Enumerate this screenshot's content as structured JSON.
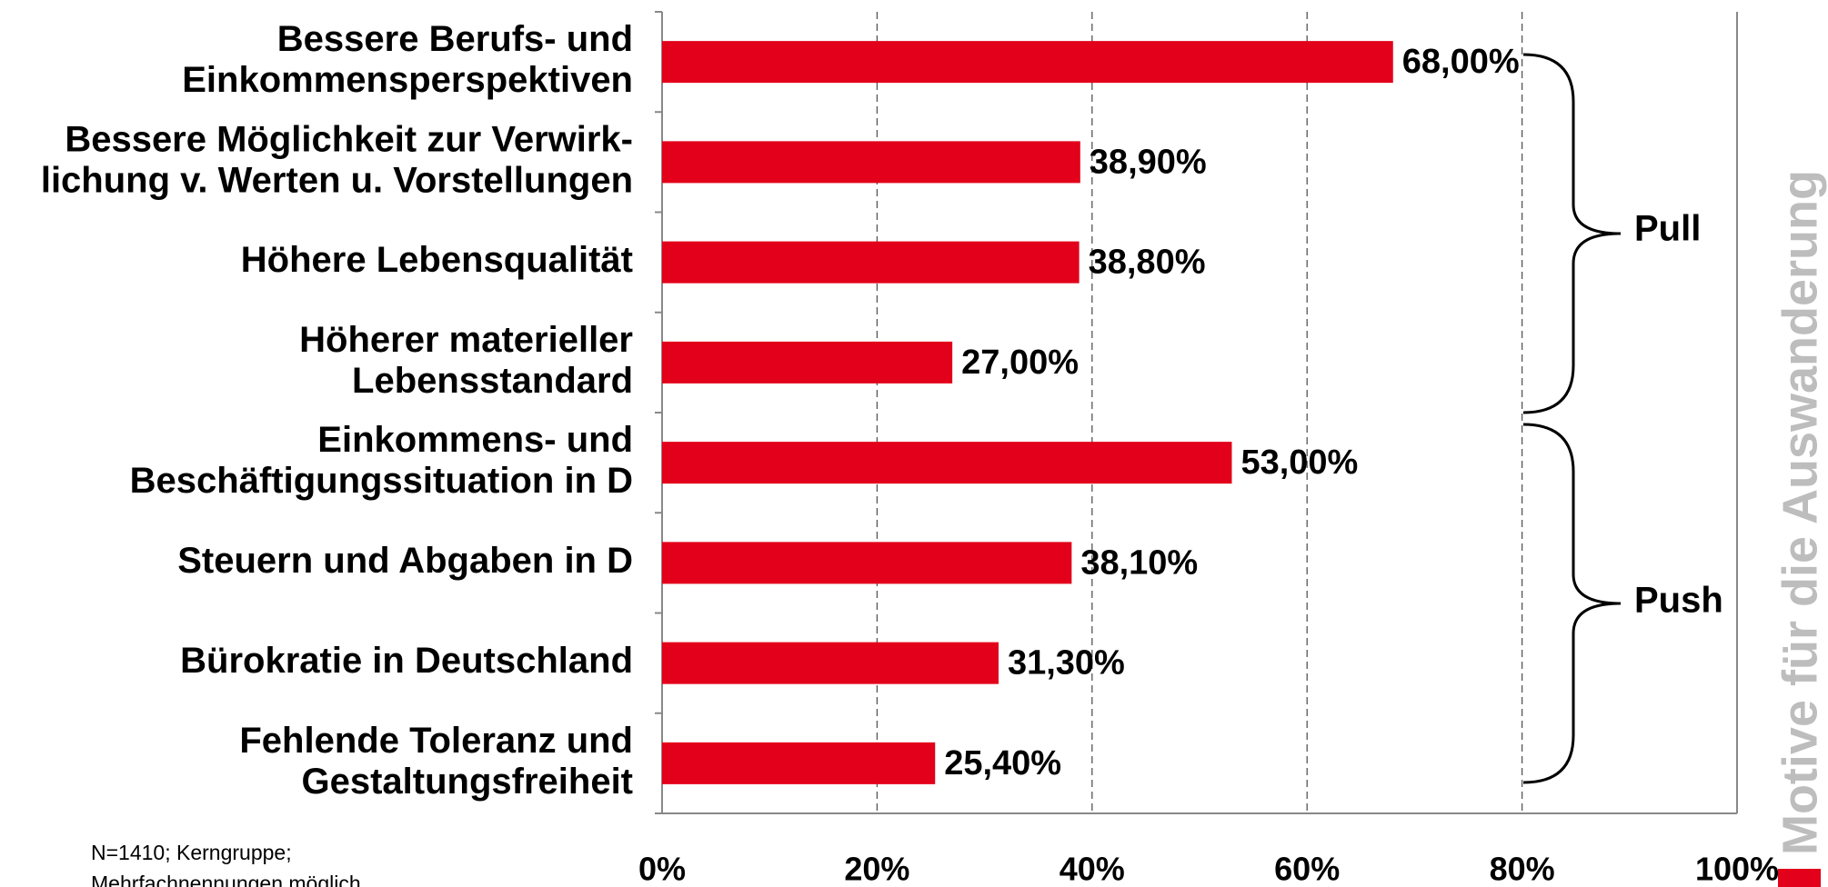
{
  "chart_data": {
    "type": "bar",
    "orientation": "horizontal",
    "categories": [
      [
        "Bessere Berufs- und",
        "Einkommensperspektiven"
      ],
      [
        "Bessere Möglichkeit zur Verwirk-",
        "lichung v. Werten u. Vorstellungen"
      ],
      [
        "Höhere Lebensqualität"
      ],
      [
        "Höherer materieller",
        "Lebensstandard"
      ],
      [
        "Einkommens- und",
        "Beschäftigungssituation in D"
      ],
      [
        "Steuern und Abgaben in D"
      ],
      [
        "Bürokratie in Deutschland"
      ],
      [
        "Fehlende Toleranz und",
        "Gestaltungsfreiheit"
      ]
    ],
    "values": [
      68,
      38.9,
      38.8,
      27,
      53,
      38.1,
      31.3,
      25.4
    ],
    "value_labels": [
      "68,00%",
      "38,90%",
      "38,80%",
      "27,00%",
      "53,00%",
      "38,10%",
      "31,30%",
      "25,40%"
    ],
    "color": "#e2001a",
    "xlim": [
      0,
      100
    ],
    "xticks": [
      {
        "value": 0,
        "label": "0%"
      },
      {
        "value": 20,
        "label": "20%"
      },
      {
        "value": 40,
        "label": "40%"
      },
      {
        "value": 60,
        "label": "60%"
      },
      {
        "value": 80,
        "label": "80%"
      },
      {
        "value": 100,
        "label": "100%"
      }
    ],
    "grid": true,
    "annotations": [
      "Pull",
      "Push"
    ],
    "axis_title": "Motive für die Auswanderung",
    "footnote": [
      "N=1410; Kerngruppe;",
      "Mehrfachnennungen möglich"
    ]
  }
}
